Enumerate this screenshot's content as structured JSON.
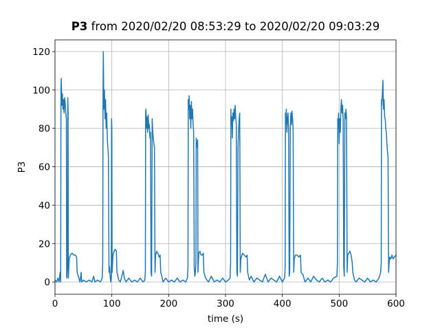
{
  "chart_data": {
    "type": "line",
    "title_bold": "P3",
    "title": "from 2020/02/20 08:53:29 to 2020/02/20 09:03:29",
    "xlabel": "time (s)",
    "ylabel": "P3",
    "color": "#1f77b4",
    "grid": true,
    "xlim": [
      0,
      600
    ],
    "ylim": [
      -6.4,
      126.1
    ],
    "xticks": [
      0,
      100,
      200,
      300,
      400,
      500,
      600
    ],
    "yticks": [
      0,
      20,
      40,
      60,
      80,
      100,
      120
    ],
    "x": [
      0,
      3,
      5,
      7,
      9,
      10,
      10.5,
      11,
      12,
      13,
      14,
      15,
      16,
      17,
      18,
      19,
      20,
      20.5,
      21,
      22,
      22.5,
      23,
      23.5,
      25,
      27,
      30,
      33,
      36,
      38,
      39,
      40,
      42,
      44,
      46,
      47,
      50,
      55,
      60,
      65,
      68,
      70,
      75,
      80,
      83,
      84,
      84.5,
      85,
      86,
      87,
      88,
      89,
      90,
      91,
      92,
      93,
      94,
      95,
      96,
      97,
      98,
      99,
      99.5,
      100,
      100.5,
      102,
      104,
      106,
      108,
      109,
      110,
      112,
      115,
      120,
      122,
      125,
      130,
      135,
      140,
      145,
      150,
      155,
      158,
      159,
      159.5,
      160,
      161,
      162,
      163,
      164,
      165,
      166,
      167,
      168,
      169,
      170,
      171,
      172,
      173,
      174,
      175,
      176,
      177,
      179,
      181,
      183,
      185,
      186,
      188,
      190,
      195,
      200,
      205,
      210,
      215,
      220,
      225,
      230,
      233,
      234,
      234.5,
      235,
      236,
      237,
      238,
      239,
      240,
      241,
      242,
      243,
      244,
      245,
      246,
      247,
      248,
      248.5,
      249,
      250,
      251,
      251.5,
      253,
      255,
      257,
      259,
      261,
      262,
      265,
      270,
      275,
      280,
      285,
      290,
      295,
      300,
      305,
      308,
      309,
      309.5,
      310,
      311,
      312,
      313,
      314,
      315,
      316,
      317,
      318,
      319,
      320,
      321,
      322,
      323,
      324,
      325,
      326,
      327,
      330,
      333,
      336,
      338,
      339,
      342,
      345,
      350,
      355,
      360,
      365,
      370,
      375,
      380,
      385,
      390,
      395,
      400,
      404,
      405,
      405.5,
      406,
      407,
      408,
      409,
      410,
      411,
      412,
      413,
      414,
      415,
      416,
      417,
      418,
      419,
      420,
      421,
      423,
      426,
      429,
      432,
      433,
      436,
      440,
      445,
      450,
      455,
      460,
      465,
      470,
      475,
      480,
      485,
      490,
      496,
      497,
      497.5,
      498,
      499,
      500,
      501,
      502,
      503,
      504,
      505,
      506,
      507,
      508,
      509,
      510,
      511,
      512,
      513,
      514,
      515,
      517,
      519,
      521,
      523,
      524,
      527,
      530,
      535,
      540,
      545,
      550,
      555,
      560,
      565,
      570,
      573,
      574,
      574.5,
      575,
      576,
      577,
      578,
      579,
      580,
      581,
      582,
      583,
      584,
      585,
      586,
      587,
      588,
      589,
      591,
      593,
      595,
      597,
      600
    ],
    "values": [
      1,
      0,
      2,
      0,
      5,
      0,
      100,
      106,
      92,
      98,
      90,
      95,
      88,
      96,
      93,
      88,
      85,
      3,
      2,
      10,
      96,
      90,
      2,
      12,
      14,
      15,
      14,
      14,
      13,
      5,
      4,
      2,
      0,
      5,
      0,
      1,
      0,
      1,
      0,
      3,
      0,
      1,
      0,
      2,
      10,
      95,
      120,
      90,
      100,
      85,
      95,
      80,
      88,
      75,
      70,
      65,
      5,
      8,
      3,
      0,
      2,
      85,
      80,
      5,
      14,
      16,
      17,
      16,
      5,
      4,
      1,
      0,
      6,
      2,
      0,
      2,
      0,
      1,
      0,
      2,
      0,
      1,
      5,
      88,
      90,
      80,
      86,
      78,
      87,
      80,
      82,
      75,
      78,
      5,
      3,
      85,
      78,
      75,
      72,
      70,
      5,
      14,
      16,
      15,
      13,
      14,
      5,
      3,
      0,
      2,
      0,
      1,
      0,
      2,
      0,
      1,
      0,
      2,
      8,
      95,
      90,
      97,
      85,
      92,
      80,
      94,
      85,
      90,
      82,
      78,
      8,
      3,
      5,
      10,
      75,
      70,
      72,
      74,
      5,
      15,
      16,
      14,
      14,
      15,
      5,
      2,
      0,
      3,
      0,
      1,
      0,
      2,
      0,
      1,
      2,
      10,
      90,
      82,
      86,
      75,
      88,
      84,
      90,
      85,
      92,
      86,
      82,
      5,
      3,
      70,
      78,
      85,
      88,
      5,
      12,
      15,
      14,
      13,
      14,
      5,
      1,
      3,
      0,
      2,
      1,
      0,
      4,
      0,
      2,
      1,
      0,
      3,
      0,
      2,
      8,
      88,
      82,
      90,
      78,
      85,
      88,
      80,
      3,
      5,
      80,
      88,
      82,
      89,
      85,
      80,
      5,
      12,
      14,
      14,
      13,
      14,
      5,
      4,
      0,
      2,
      0,
      3,
      1,
      0,
      2,
      0,
      1,
      0,
      2,
      3,
      10,
      85,
      80,
      88,
      72,
      85,
      78,
      90,
      95,
      88,
      92,
      85,
      8,
      3,
      88,
      85,
      90,
      85,
      5,
      14,
      15,
      16,
      14,
      10,
      5,
      1,
      0,
      2,
      1,
      0,
      2,
      0,
      1,
      0,
      2,
      5,
      10,
      95,
      92,
      98,
      105,
      90,
      95,
      86,
      85,
      80,
      78,
      72,
      68,
      65,
      5,
      10,
      13,
      12,
      14,
      12,
      13,
      14
    ]
  }
}
